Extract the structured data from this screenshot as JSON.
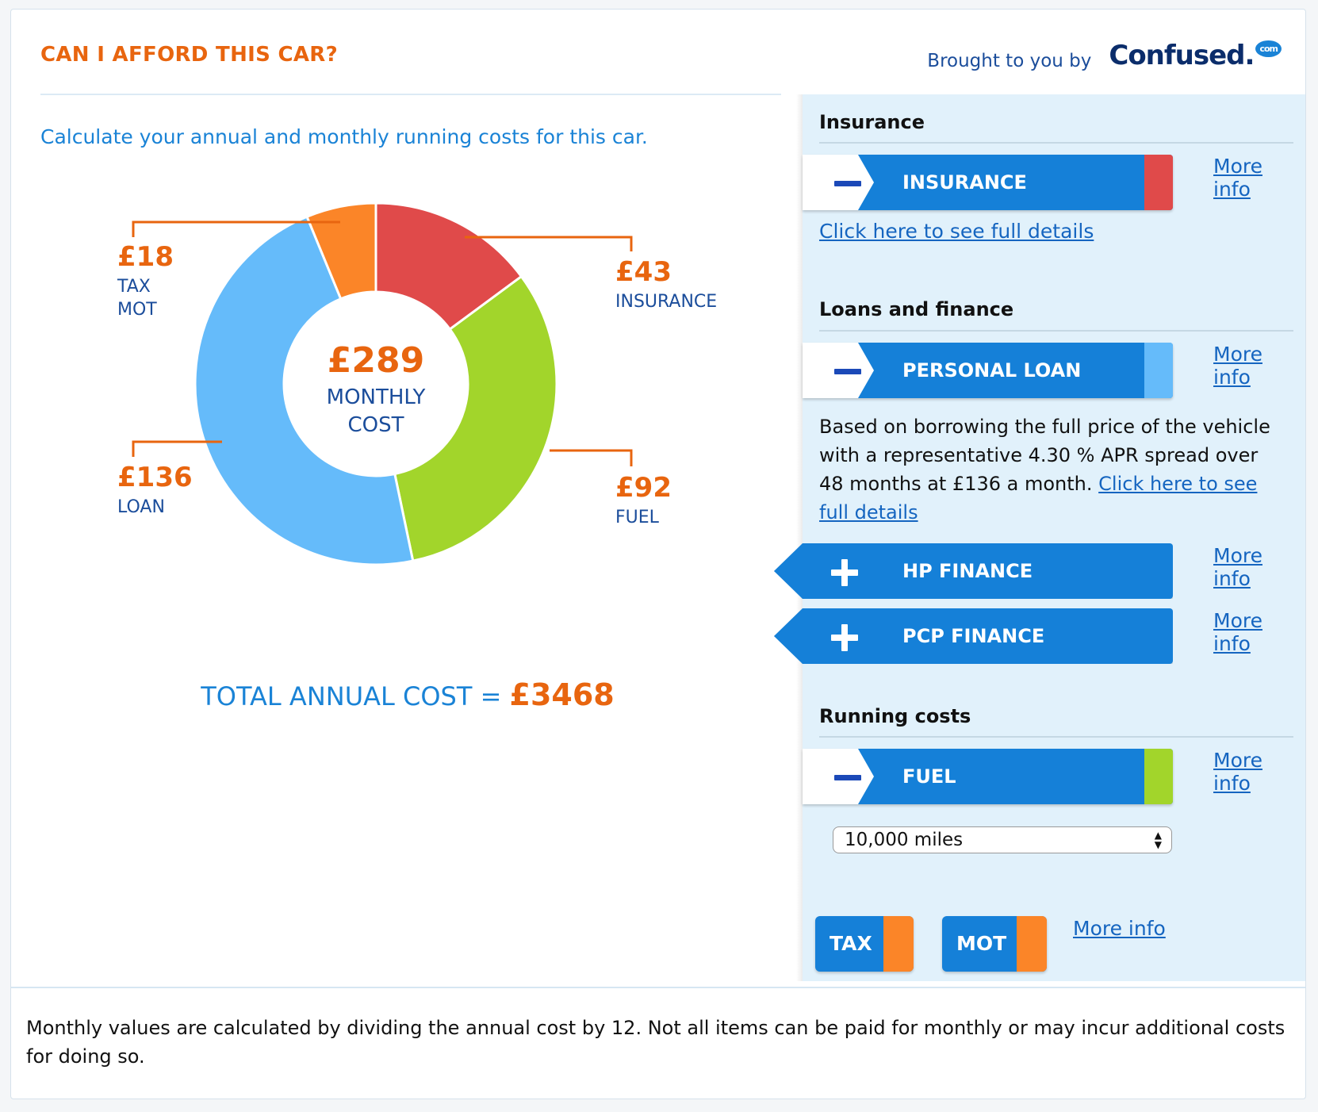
{
  "header": {
    "title": "CAN I AFFORD THIS CAR?",
    "brought_by": "Brought to you by",
    "brand": "Confused",
    "brand_suffix": "com"
  },
  "subtitle": "Calculate your annual and monthly running costs for this car.",
  "chart_data": {
    "type": "pie",
    "variant": "donut",
    "center_amount": "£289",
    "center_label_1": "MONTHLY",
    "center_label_2": "COST",
    "slices": [
      {
        "name": "INSURANCE",
        "value": 43,
        "display": "£43",
        "color": "#e04a4a"
      },
      {
        "name": "FUEL",
        "value": 92,
        "display": "£92",
        "color": "#a2d52b"
      },
      {
        "name": "LOAN",
        "value": 136,
        "display": "£136",
        "color": "#65bbfa"
      },
      {
        "name": "TAX MOT",
        "value": 18,
        "display": "£18",
        "color": "#fb8528"
      }
    ],
    "labels": {
      "tax": "TAX",
      "mot": "MOT",
      "insurance": "INSURANCE",
      "loan": "LOAN",
      "fuel": "FUEL"
    }
  },
  "total": {
    "label": "TOTAL ANNUAL COST = ",
    "amount": "£3468"
  },
  "panel": {
    "insurance": {
      "section_title": "Insurance",
      "bar_label": "INSURANCE",
      "more_info": "More info",
      "details_link": "Click here to see full details"
    },
    "loans": {
      "section_title": "Loans and finance",
      "personal_loan": {
        "bar_label": "PERSONAL LOAN",
        "more_info": "More info",
        "description": "Based on borrowing the full price of the vehicle with a representative 4.30 % APR spread over 48 months at £136 a month.",
        "details_link": "Click here to see full details"
      },
      "hp_finance": {
        "bar_label": "HP FINANCE",
        "more_info": "More info"
      },
      "pcp_finance": {
        "bar_label": "PCP FINANCE",
        "more_info": "More info"
      }
    },
    "running": {
      "section_title": "Running costs",
      "fuel": {
        "bar_label": "FUEL",
        "more_info": "More info"
      },
      "mileage_selected": "10,000 miles",
      "tax_label": "TAX",
      "mot_label": "MOT",
      "more_info": "More info"
    }
  },
  "colors": {
    "accent_orange": "#e8650f",
    "primary_blue": "#1580d8",
    "link_blue": "#1565c0",
    "panel_bg": "#e1f1fb"
  },
  "footer": "Monthly values are calculated by dividing the annual cost by 12. Not all items can be paid for monthly or may incur additional costs for doing so."
}
